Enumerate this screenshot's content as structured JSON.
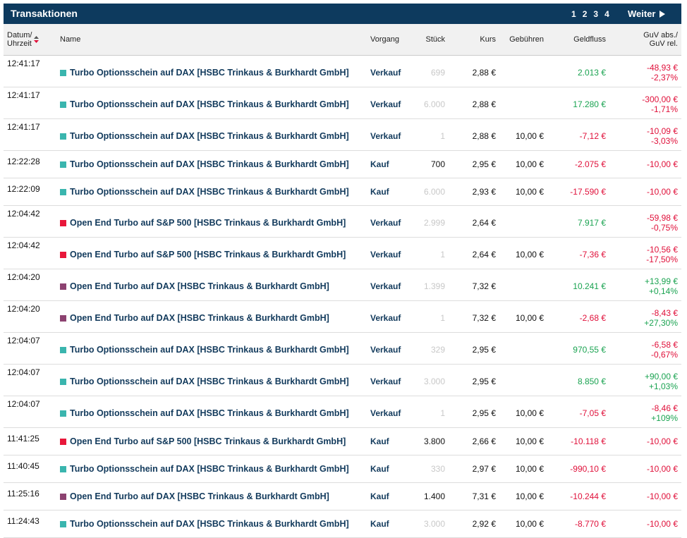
{
  "header": {
    "title": "Transaktionen",
    "pages": [
      "1",
      "2",
      "3",
      "4"
    ],
    "next": "Weiter"
  },
  "table": {
    "columns": [
      [
        "Datum/",
        "Uhrzeit"
      ],
      "Name",
      "Vorgang",
      "Stück",
      "Kurs",
      "Gebühren",
      "Geldfluss",
      [
        "GuV abs./",
        "GuV rel."
      ]
    ],
    "rows": [
      {
        "time": "12:41:17",
        "color": "#3ab5ae",
        "name": "Turbo Optionsschein auf DAX [HSBC Trinkaus & Burkhardt GmbH]",
        "vorgang": "Verkauf",
        "stueck": "699",
        "muted": true,
        "kurs": "2,88 €",
        "geldfluss": "2.013 €",
        "guv_abs": "-48,93 €",
        "guv_rel": "-2,37%"
      },
      {
        "time": "12:41:17",
        "color": "#3ab5ae",
        "name": "Turbo Optionsschein auf DAX [HSBC Trinkaus & Burkhardt GmbH]",
        "vorgang": "Verkauf",
        "stueck": "6.000",
        "muted": true,
        "kurs": "2,88 €",
        "geldfluss": "17.280 €",
        "guv_abs": "-300,00 €",
        "guv_rel": "-1,71%"
      },
      {
        "time": "12:41:17",
        "color": "#3ab5ae",
        "name": "Turbo Optionsschein auf DAX [HSBC Trinkaus & Burkhardt GmbH]",
        "vorgang": "Verkauf",
        "stueck": "1",
        "muted": true,
        "kurs": "2,88 €",
        "gebuehren": "10,00 €",
        "geldfluss": "-7,12 €",
        "guv_abs": "-10,09 €",
        "guv_rel": "-3,03%"
      },
      {
        "time": "12:22:28",
        "color": "#3ab5ae",
        "name": "Turbo Optionsschein auf DAX [HSBC Trinkaus & Burkhardt GmbH]",
        "vorgang": "Kauf",
        "stueck": "700",
        "muted": false,
        "kurs": "2,95 €",
        "gebuehren": "10,00 €",
        "geldfluss": "-2.075 €",
        "guv_abs": "-10,00 €"
      },
      {
        "time": "12:22:09",
        "color": "#3ab5ae",
        "name": "Turbo Optionsschein auf DAX [HSBC Trinkaus & Burkhardt GmbH]",
        "vorgang": "Kauf",
        "stueck": "6.000",
        "muted": true,
        "kurs": "2,93 €",
        "gebuehren": "10,00 €",
        "geldfluss": "-17.590 €",
        "guv_abs": "-10,00 €"
      },
      {
        "time": "12:04:42",
        "color": "#e8173a",
        "name": "Open End Turbo auf S&P 500 [HSBC Trinkaus & Burkhardt GmbH]",
        "vorgang": "Verkauf",
        "stueck": "2.999",
        "muted": true,
        "kurs": "2,64 €",
        "geldfluss": "7.917 €",
        "guv_abs": "-59,98 €",
        "guv_rel": "-0,75%"
      },
      {
        "time": "12:04:42",
        "color": "#e8173a",
        "name": "Open End Turbo auf S&P 500 [HSBC Trinkaus & Burkhardt GmbH]",
        "vorgang": "Verkauf",
        "stueck": "1",
        "muted": true,
        "kurs": "2,64 €",
        "gebuehren": "10,00 €",
        "geldfluss": "-7,36 €",
        "guv_abs": "-10,56 €",
        "guv_rel": "-17,50%"
      },
      {
        "time": "12:04:20",
        "color": "#8c4270",
        "name": "Open End Turbo auf DAX [HSBC Trinkaus & Burkhardt GmbH]",
        "vorgang": "Verkauf",
        "stueck": "1.399",
        "muted": true,
        "kurs": "7,32 €",
        "geldfluss": "10.241 €",
        "guv_abs": "+13,99 €",
        "guv_rel": "+0,14%"
      },
      {
        "time": "12:04:20",
        "color": "#8c4270",
        "name": "Open End Turbo auf DAX [HSBC Trinkaus & Burkhardt GmbH]",
        "vorgang": "Verkauf",
        "stueck": "1",
        "muted": true,
        "kurs": "7,32 €",
        "gebuehren": "10,00 €",
        "geldfluss": "-2,68 €",
        "guv_abs": "-8,43 €",
        "guv_rel": "+27,30%"
      },
      {
        "time": "12:04:07",
        "color": "#3ab5ae",
        "name": "Turbo Optionsschein auf DAX [HSBC Trinkaus & Burkhardt GmbH]",
        "vorgang": "Verkauf",
        "stueck": "329",
        "muted": true,
        "kurs": "2,95 €",
        "geldfluss": "970,55 €",
        "guv_abs": "-6,58 €",
        "guv_rel": "-0,67%"
      },
      {
        "time": "12:04:07",
        "color": "#3ab5ae",
        "name": "Turbo Optionsschein auf DAX [HSBC Trinkaus & Burkhardt GmbH]",
        "vorgang": "Verkauf",
        "stueck": "3.000",
        "muted": true,
        "kurs": "2,95 €",
        "geldfluss": "8.850 €",
        "guv_abs": "+90,00 €",
        "guv_rel": "+1,03%"
      },
      {
        "time": "12:04:07",
        "color": "#3ab5ae",
        "name": "Turbo Optionsschein auf DAX [HSBC Trinkaus & Burkhardt GmbH]",
        "vorgang": "Verkauf",
        "stueck": "1",
        "muted": true,
        "kurs": "2,95 €",
        "gebuehren": "10,00 €",
        "geldfluss": "-7,05 €",
        "guv_abs": "-8,46 €",
        "guv_rel": "+109%"
      },
      {
        "time": "11:41:25",
        "color": "#e8173a",
        "name": "Open End Turbo auf S&P 500 [HSBC Trinkaus & Burkhardt GmbH]",
        "vorgang": "Kauf",
        "stueck": "3.800",
        "muted": false,
        "kurs": "2,66 €",
        "gebuehren": "10,00 €",
        "geldfluss": "-10.118 €",
        "guv_abs": "-10,00 €"
      },
      {
        "time": "11:40:45",
        "color": "#3ab5ae",
        "name": "Turbo Optionsschein auf DAX [HSBC Trinkaus & Burkhardt GmbH]",
        "vorgang": "Kauf",
        "stueck": "330",
        "muted": true,
        "kurs": "2,97 €",
        "gebuehren": "10,00 €",
        "geldfluss": "-990,10 €",
        "guv_abs": "-10,00 €"
      },
      {
        "time": "11:25:16",
        "color": "#8c4270",
        "name": "Open End Turbo auf DAX [HSBC Trinkaus & Burkhardt GmbH]",
        "vorgang": "Kauf",
        "stueck": "1.400",
        "muted": false,
        "kurs": "7,31 €",
        "gebuehren": "10,00 €",
        "geldfluss": "-10.244 €",
        "guv_abs": "-10,00 €"
      },
      {
        "time": "11:24:43",
        "color": "#3ab5ae",
        "name": "Turbo Optionsschein auf DAX [HSBC Trinkaus & Burkhardt GmbH]",
        "vorgang": "Kauf",
        "stueck": "3.000",
        "muted": true,
        "kurs": "2,92 €",
        "gebuehren": "10,00 €",
        "geldfluss": "-8.770 €",
        "guv_abs": "-10,00 €"
      }
    ]
  }
}
